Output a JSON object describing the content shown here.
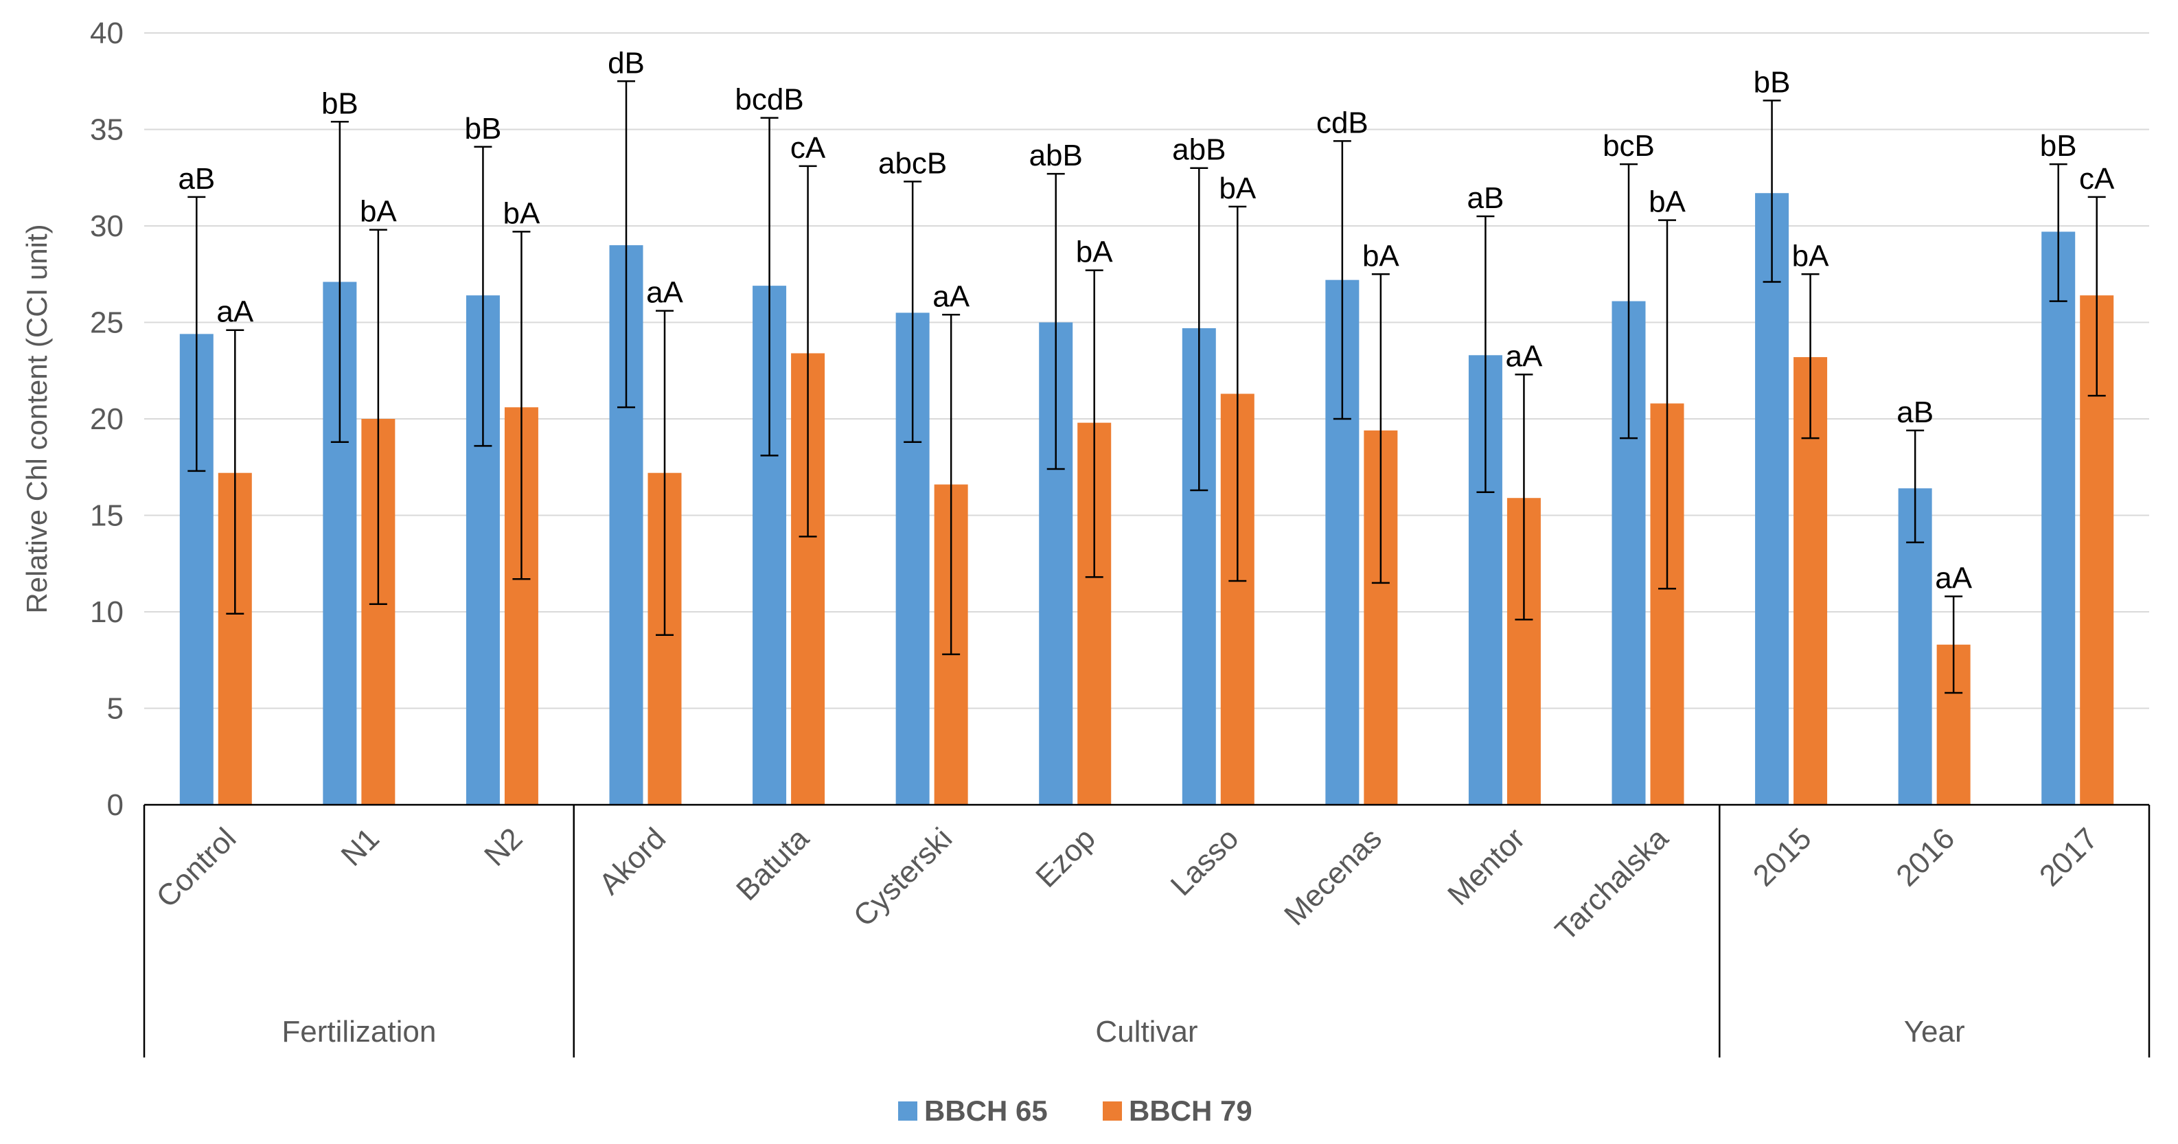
{
  "chart_data": {
    "type": "bar",
    "ylabel": "Relative Chl content (CCI unit)",
    "ylim": [
      0,
      40
    ],
    "yticks": [
      "0",
      "5",
      "10",
      "15",
      "20",
      "25",
      "30",
      "35",
      "40"
    ],
    "grid": true,
    "legend_position": "bottom",
    "categories": [
      "Control",
      "N1",
      "N2",
      "Akord",
      "Batuta",
      "Cysterski",
      "Ezop",
      "Lasso",
      "Mecenas",
      "Mentor",
      "Tarchalska",
      "2015",
      "2016",
      "2017"
    ],
    "groups": [
      {
        "label": "Fertilization",
        "start": 0,
        "end": 2
      },
      {
        "label": "Cultivar",
        "start": 3,
        "end": 10
      },
      {
        "label": "Year",
        "start": 11,
        "end": 13
      }
    ],
    "series": [
      {
        "name": "BBCH 65",
        "color": "#5B9BD5",
        "values": [
          24.4,
          27.1,
          26.4,
          29.0,
          26.9,
          25.5,
          25.0,
          24.7,
          27.2,
          23.3,
          26.1,
          31.7,
          16.4,
          29.7
        ],
        "err_low": [
          17.3,
          18.8,
          18.6,
          20.6,
          18.1,
          18.8,
          17.4,
          16.3,
          20.0,
          16.2,
          19.0,
          27.1,
          13.6,
          26.1
        ],
        "err_high": [
          31.5,
          35.4,
          34.1,
          37.5,
          35.6,
          32.3,
          32.7,
          33.0,
          34.4,
          30.5,
          33.2,
          36.5,
          19.4,
          33.2
        ],
        "labels": [
          "aB",
          "bB",
          "bB",
          "dB",
          "bcdB",
          "abcB",
          "abB",
          "abB",
          "cdB",
          "aB",
          "bcB",
          "bB",
          "aB",
          "bB"
        ]
      },
      {
        "name": "BBCH 79",
        "color": "#ED7D31",
        "values": [
          17.2,
          20.0,
          20.6,
          17.2,
          23.4,
          16.6,
          19.8,
          21.3,
          19.4,
          15.9,
          20.8,
          23.2,
          8.3,
          26.4
        ],
        "err_low": [
          9.9,
          10.4,
          11.7,
          8.8,
          13.9,
          7.8,
          11.8,
          11.6,
          11.5,
          9.6,
          11.2,
          19.0,
          5.8,
          21.2
        ],
        "err_high": [
          24.6,
          29.8,
          29.7,
          25.6,
          33.1,
          25.4,
          27.7,
          31.0,
          27.5,
          22.3,
          30.3,
          27.5,
          10.8,
          31.5
        ],
        "labels": [
          "aA",
          "bA",
          "bA",
          "aA",
          "cA",
          "aA",
          "bA",
          "bA",
          "bA",
          "aA",
          "bA",
          "bA",
          "aA",
          "cA"
        ]
      }
    ]
  }
}
